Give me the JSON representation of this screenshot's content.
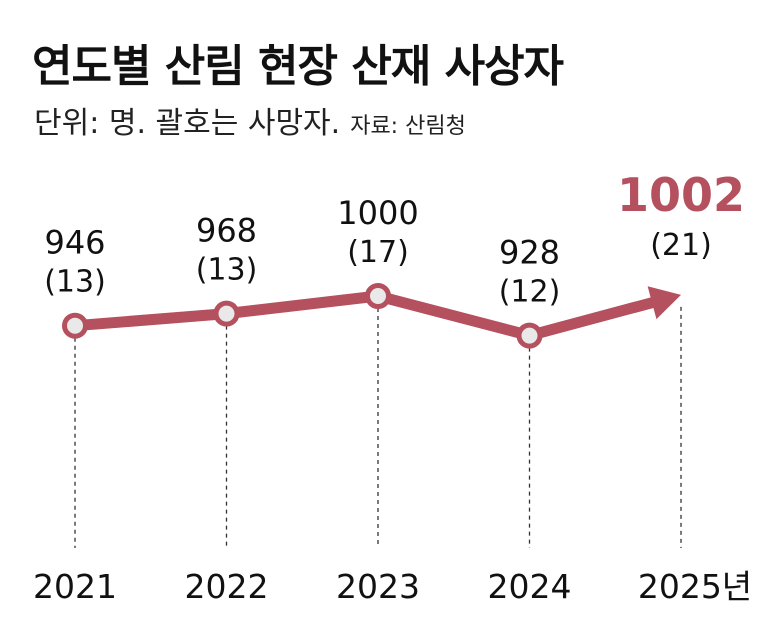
{
  "title": "연도별 산림 현장 산재 사상자",
  "subtitle_unit": "단위: 명. 괄호는 사망자.",
  "source": "자료: 산림청",
  "colors": {
    "series": "#b5505f",
    "highlight": "#b5505f",
    "marker_fill": "#e9e9e9",
    "text": "#111111",
    "dashed": "#333333"
  },
  "chart_data": {
    "type": "line",
    "categories": [
      "2021",
      "2022",
      "2023",
      "2024",
      "2025년"
    ],
    "series": [
      {
        "values": [
          946,
          968,
          1000,
          928,
          1002
        ],
        "deaths": [
          13,
          13,
          17,
          12,
          21
        ],
        "labels": [
          "946",
          "968",
          "1000",
          "928",
          "1002"
        ],
        "death_labels": [
          "(13)",
          "(13)",
          "(17)",
          "(12)",
          "(21)"
        ]
      }
    ],
    "highlight_index": 4,
    "last_point_style": "arrow",
    "grid": false,
    "legend": "none"
  }
}
